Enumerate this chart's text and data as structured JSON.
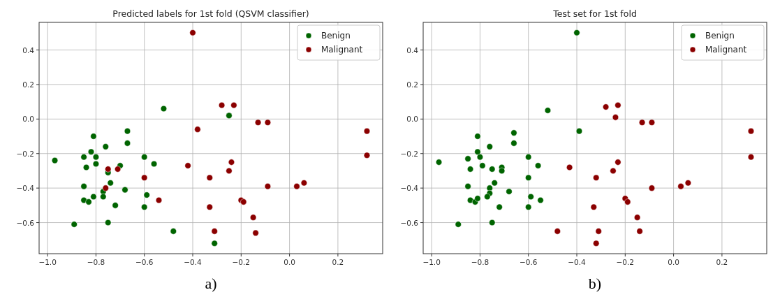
{
  "chart_data": [
    {
      "type": "scatter",
      "title": "Predicted labels for 1st fold (QSVM classifier)",
      "annotations": [
        "a)"
      ],
      "marker": "circle",
      "grid": true,
      "legend": "top right",
      "xlim": [
        -1.035,
        0.385
      ],
      "ylim": [
        -0.78,
        0.56
      ],
      "xticks": [
        {
          "value": -1,
          "label": "−1.0"
        },
        {
          "value": -0.8,
          "label": "−0.8"
        },
        {
          "value": -0.6,
          "label": "−0.6"
        },
        {
          "value": -0.4,
          "label": "−0.4"
        },
        {
          "value": -0.2,
          "label": "−0.2"
        },
        {
          "value": 0,
          "label": "0.0"
        },
        {
          "value": 0.2,
          "label": "0.2"
        }
      ],
      "yticks": [
        {
          "value": -0.6,
          "label": "−0.6"
        },
        {
          "value": -0.4,
          "label": "−0.4"
        },
        {
          "value": -0.2,
          "label": "−0.2"
        },
        {
          "value": 0,
          "label": "0.0"
        },
        {
          "value": 0.2,
          "label": "0.2"
        },
        {
          "value": 0.4,
          "label": "0.4"
        }
      ],
      "series": [
        {
          "name": "Benign",
          "color": "#006400",
          "x": [
            -0.97,
            -0.89,
            -0.85,
            -0.84,
            -0.85,
            -0.85,
            -0.83,
            -0.81,
            -0.81,
            -0.82,
            -0.8,
            -0.8,
            -0.76,
            -0.75,
            -0.74,
            -0.77,
            -0.77,
            -0.75,
            -0.72,
            -0.7,
            -0.68,
            -0.67,
            -0.67,
            -0.6,
            -0.59,
            -0.6,
            -0.56,
            -0.52,
            -0.48,
            -0.25,
            -0.31
          ],
          "values": [
            -0.24,
            -0.61,
            -0.22,
            -0.28,
            -0.39,
            -0.47,
            -0.48,
            -0.45,
            -0.1,
            -0.19,
            -0.22,
            -0.26,
            -0.16,
            -0.31,
            -0.37,
            -0.42,
            -0.45,
            -0.6,
            -0.5,
            -0.27,
            -0.41,
            -0.07,
            -0.14,
            -0.22,
            -0.44,
            -0.51,
            -0.26,
            0.06,
            -0.65,
            0.02,
            -0.72
          ]
        },
        {
          "name": "Malignant",
          "color": "#8b0000",
          "x": [
            -0.75,
            -0.71,
            -0.76,
            -0.6,
            -0.54,
            -0.4,
            -0.38,
            -0.42,
            -0.28,
            -0.23,
            -0.13,
            -0.09,
            0.32,
            0.32,
            -0.24,
            -0.25,
            -0.33,
            -0.09,
            0.03,
            0.06,
            -0.2,
            -0.19,
            -0.33,
            -0.15,
            -0.31,
            -0.14
          ],
          "values": [
            -0.29,
            -0.29,
            -0.4,
            -0.34,
            -0.47,
            0.5,
            -0.06,
            -0.27,
            0.08,
            0.08,
            -0.02,
            -0.02,
            -0.07,
            -0.21,
            -0.25,
            -0.3,
            -0.34,
            -0.39,
            -0.39,
            -0.37,
            -0.47,
            -0.48,
            -0.51,
            -0.57,
            -0.65,
            -0.66
          ]
        }
      ]
    },
    {
      "type": "scatter",
      "title": "Test set for 1st fold",
      "annotations": [
        "b)"
      ],
      "marker": "circle",
      "grid": true,
      "legend": "top right",
      "xlim": [
        -1.035,
        0.385
      ],
      "ylim": [
        -0.78,
        0.56
      ],
      "xticks": [
        {
          "value": -1,
          "label": "−1.0"
        },
        {
          "value": -0.8,
          "label": "−0.8"
        },
        {
          "value": -0.6,
          "label": "−0.6"
        },
        {
          "value": -0.4,
          "label": "−0.4"
        },
        {
          "value": -0.2,
          "label": "−0.2"
        },
        {
          "value": 0,
          "label": "0.0"
        },
        {
          "value": 0.2,
          "label": "0.2"
        }
      ],
      "yticks": [
        {
          "value": -0.6,
          "label": "−0.6"
        },
        {
          "value": -0.4,
          "label": "−0.4"
        },
        {
          "value": -0.2,
          "label": "−0.2"
        },
        {
          "value": 0,
          "label": "0.0"
        },
        {
          "value": 0.2,
          "label": "0.2"
        },
        {
          "value": 0.4,
          "label": "0.4"
        }
      ],
      "series": [
        {
          "name": "Benign",
          "color": "#006400",
          "x": [
            -0.97,
            -0.89,
            -0.85,
            -0.84,
            -0.85,
            -0.84,
            -0.82,
            -0.81,
            -0.81,
            -0.81,
            -0.8,
            -0.79,
            -0.76,
            -0.75,
            -0.74,
            -0.76,
            -0.76,
            -0.77,
            -0.75,
            -0.72,
            -0.71,
            -0.71,
            -0.68,
            -0.66,
            -0.66,
            -0.6,
            -0.6,
            -0.59,
            -0.6,
            -0.56,
            -0.55,
            -0.52,
            -0.4,
            -0.39
          ],
          "values": [
            -0.25,
            -0.61,
            -0.23,
            -0.29,
            -0.39,
            -0.47,
            -0.48,
            -0.46,
            -0.1,
            -0.19,
            -0.22,
            -0.27,
            -0.16,
            -0.29,
            -0.37,
            -0.4,
            -0.43,
            -0.45,
            -0.6,
            -0.51,
            -0.28,
            -0.3,
            -0.42,
            -0.08,
            -0.14,
            -0.22,
            -0.34,
            -0.45,
            -0.51,
            -0.27,
            -0.47,
            0.05,
            0.5,
            -0.07
          ]
        },
        {
          "name": "Malignant",
          "color": "#8b0000",
          "x": [
            -0.43,
            -0.48,
            -0.28,
            -0.23,
            -0.24,
            -0.13,
            -0.09,
            0.32,
            0.32,
            -0.23,
            -0.25,
            -0.32,
            -0.09,
            0.03,
            0.06,
            -0.2,
            -0.19,
            -0.33,
            -0.15,
            -0.31,
            -0.14,
            -0.32
          ],
          "values": [
            -0.28,
            -0.65,
            0.07,
            0.08,
            0.01,
            -0.02,
            -0.02,
            -0.07,
            -0.22,
            -0.25,
            -0.3,
            -0.34,
            -0.4,
            -0.39,
            -0.37,
            -0.46,
            -0.48,
            -0.51,
            -0.57,
            -0.65,
            -0.65,
            -0.72
          ]
        }
      ]
    }
  ]
}
